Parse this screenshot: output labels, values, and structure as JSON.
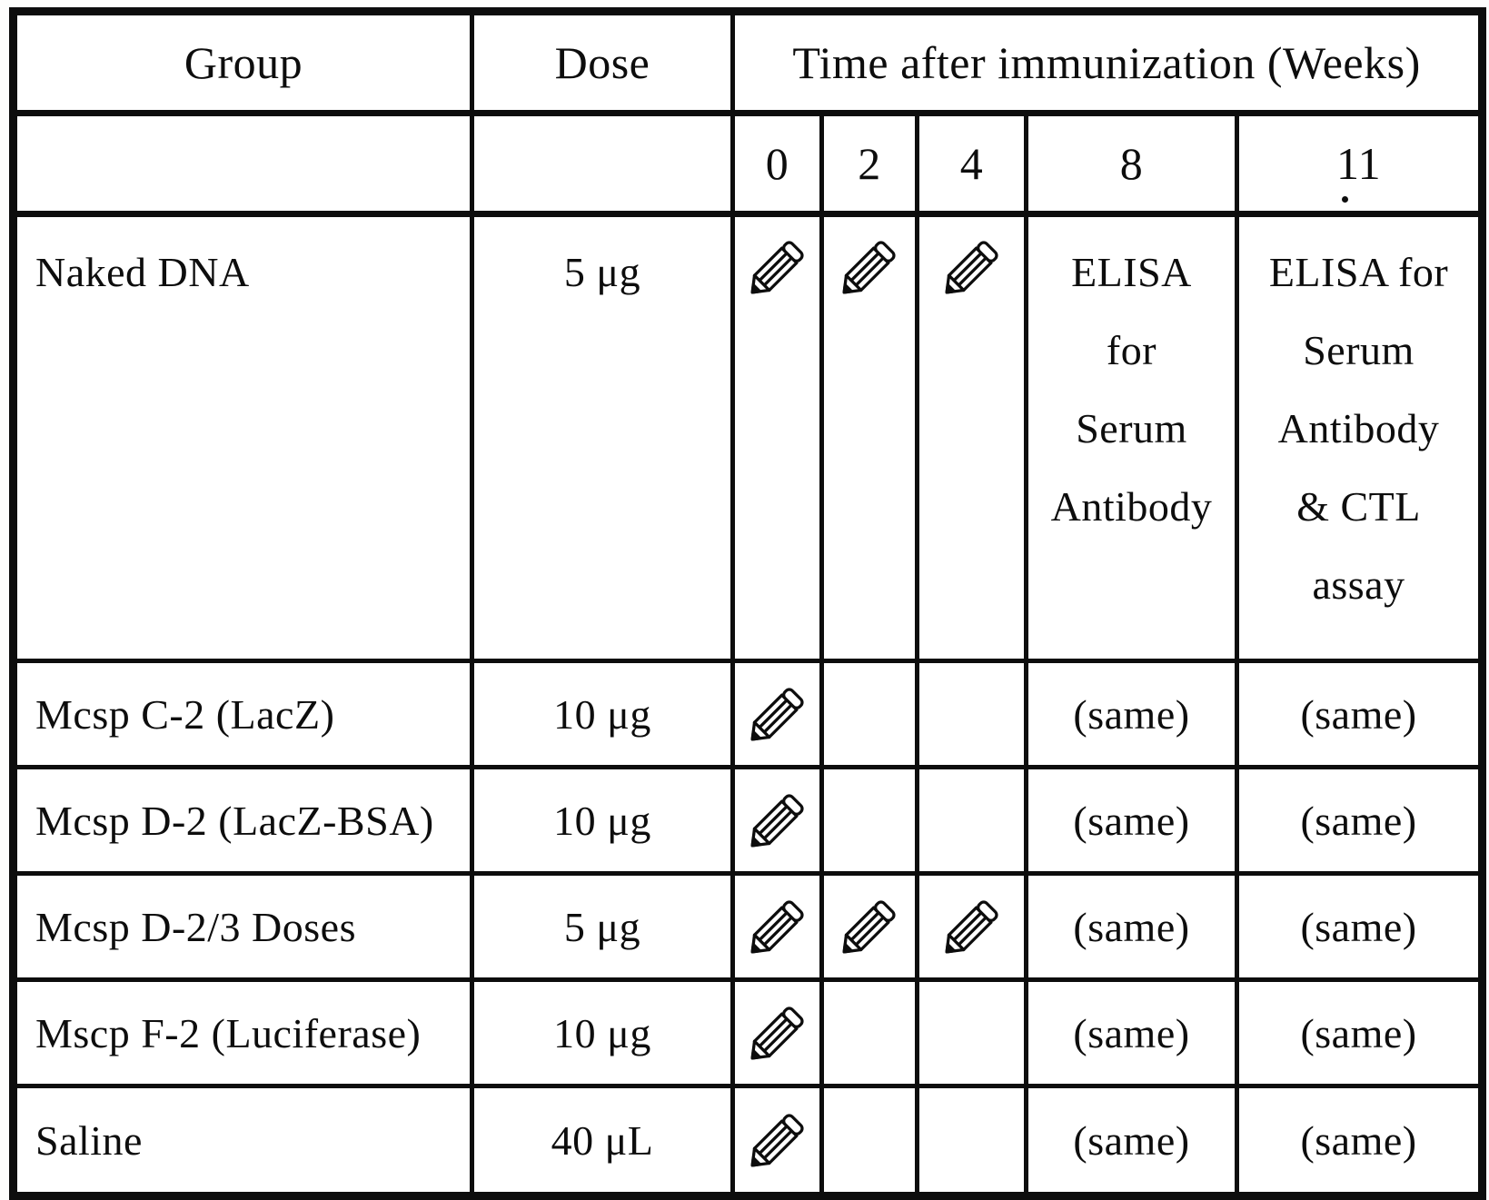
{
  "colors": {
    "background": "#ffffff",
    "ink": "#0d0d0d"
  },
  "icons": {
    "pencil": "pencil-icon (injection timepoint mark)"
  },
  "table": {
    "header": {
      "group": "Group",
      "dose": "Dose",
      "time": "Time after immunization (Weeks)",
      "weeks": [
        "0",
        "2",
        "4",
        "8",
        "11"
      ]
    },
    "rows": [
      {
        "group": "Naked DNA",
        "dose": "5 μg",
        "marks": {
          "w0": "pencil",
          "w2": "pencil",
          "w4": "pencil"
        },
        "w8_lines": [
          "ELISA",
          "for",
          "Serum",
          "Antibody"
        ],
        "w11_lines": [
          "ELISA for",
          "Serum",
          "Antibody",
          "& CTL",
          "assay"
        ]
      },
      {
        "group": "Mcsp C-2 (LacZ)",
        "dose": "10 μg",
        "marks": {
          "w0": "pencil",
          "w2": "",
          "w4": ""
        },
        "w8": "(same)",
        "w11": "(same)"
      },
      {
        "group": "Mcsp D-2 (LacZ-BSA)",
        "dose": "10 μg",
        "marks": {
          "w0": "pencil",
          "w2": "",
          "w4": ""
        },
        "w8": "(same)",
        "w11": "(same)"
      },
      {
        "group": "Mcsp D-2/3 Doses",
        "dose": "5 μg",
        "marks": {
          "w0": "pencil",
          "w2": "pencil",
          "w4": "pencil"
        },
        "w8": "(same)",
        "w11": "(same)"
      },
      {
        "group": "Mscp F-2 (Luciferase)",
        "dose": "10 μg",
        "marks": {
          "w0": "pencil",
          "w2": "",
          "w4": ""
        },
        "w8": "(same)",
        "w11": "(same)"
      },
      {
        "group": "Saline",
        "dose": "40 μL",
        "marks": {
          "w0": "pencil",
          "w2": "",
          "w4": ""
        },
        "w8": "(same)",
        "w11": "(same)"
      }
    ]
  }
}
